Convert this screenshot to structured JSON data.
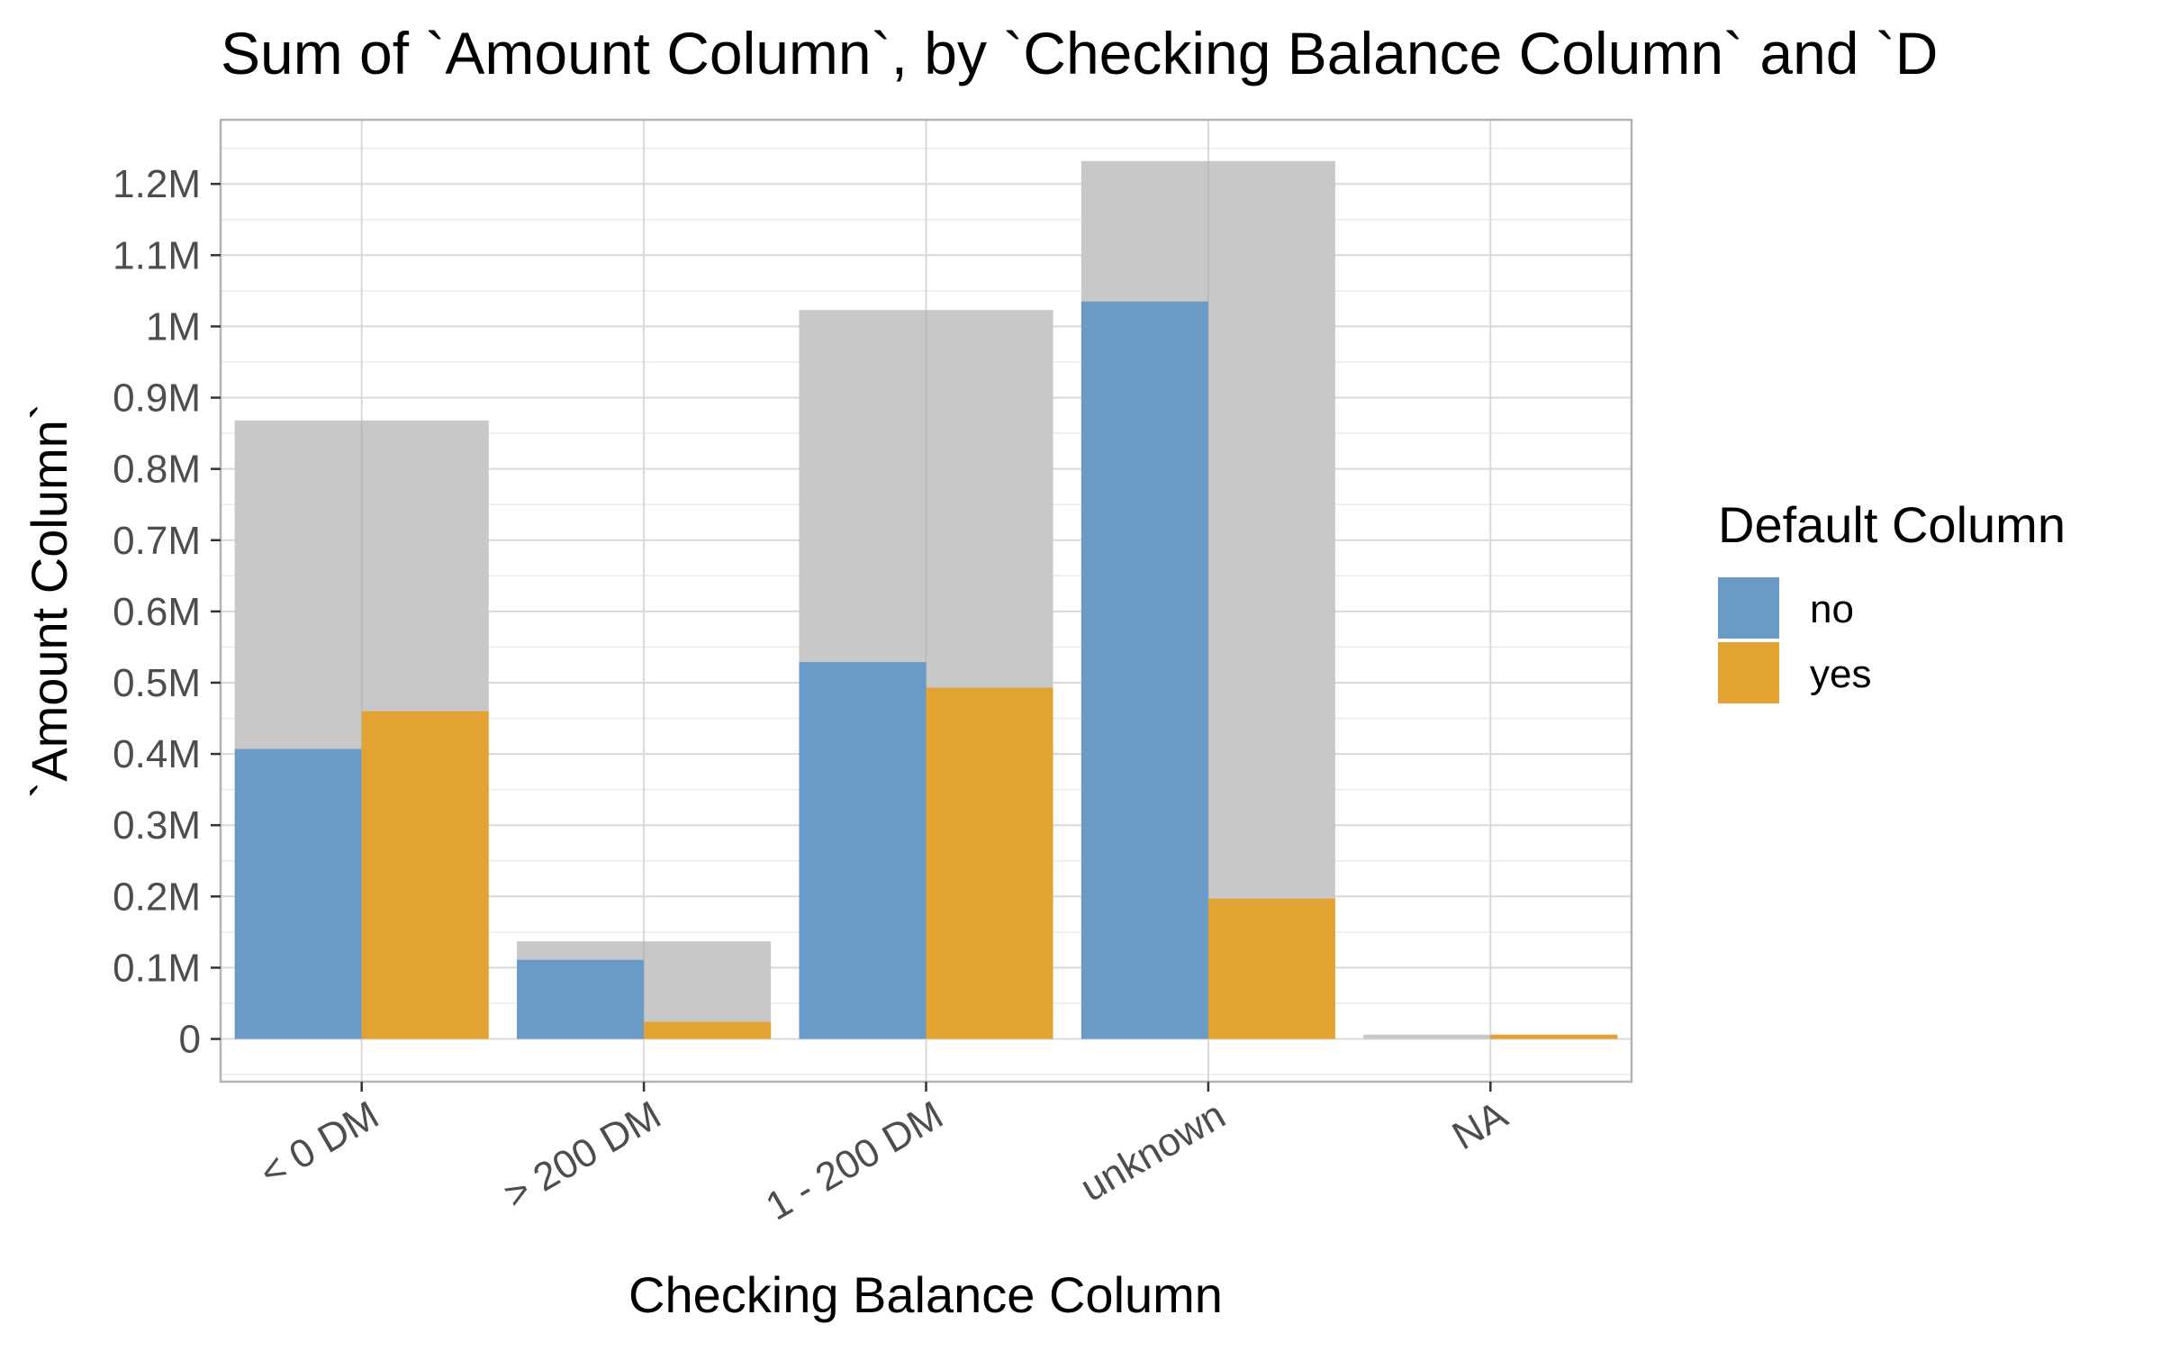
{
  "chart_data": {
    "type": "bar",
    "title": "Sum of `Amount Column`, by `Checking Balance Column` and `D",
    "xlabel": "Checking Balance Column",
    "ylabel": "`Amount Column`",
    "categories": [
      "< 0 DM",
      "> 200 DM",
      "1 - 200 DM",
      "unknown",
      "NA"
    ],
    "yticks": [
      {
        "value": 0,
        "label": "0"
      },
      {
        "value": 100000,
        "label": "0.1M"
      },
      {
        "value": 200000,
        "label": "0.2M"
      },
      {
        "value": 300000,
        "label": "0.3M"
      },
      {
        "value": 400000,
        "label": "0.4M"
      },
      {
        "value": 500000,
        "label": "0.5M"
      },
      {
        "value": 600000,
        "label": "0.6M"
      },
      {
        "value": 700000,
        "label": "0.7M"
      },
      {
        "value": 800000,
        "label": "0.8M"
      },
      {
        "value": 900000,
        "label": "0.9M"
      },
      {
        "value": 1000000,
        "label": "1M"
      },
      {
        "value": 1100000,
        "label": "1.1M"
      },
      {
        "value": 1200000,
        "label": "1.2M"
      }
    ],
    "ylim": [
      -60000,
      1290000
    ],
    "grid": true,
    "totals": [
      868000,
      137000,
      1023000,
      1232000,
      6000
    ],
    "totals_color": "#c8c8c8",
    "series": [
      {
        "name": "no",
        "color": "#6a9bc7",
        "values": [
          407000,
          111000,
          529000,
          1035000,
          0
        ]
      },
      {
        "name": "yes",
        "color": "#e3a332",
        "values": [
          460000,
          24000,
          493000,
          197000,
          6000
        ]
      }
    ],
    "legend": {
      "title": "Default Column",
      "position": "right"
    }
  }
}
